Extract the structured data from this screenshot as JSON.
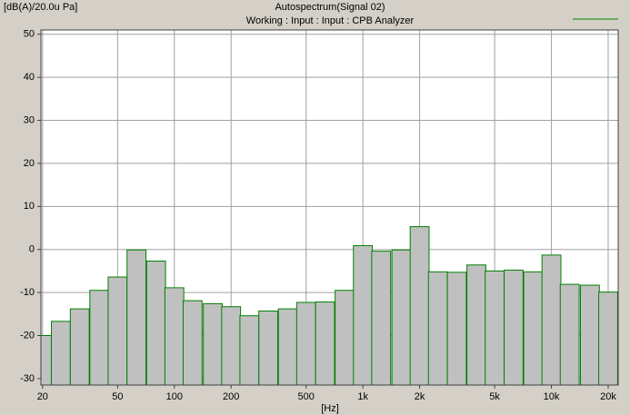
{
  "chart_data": {
    "type": "bar",
    "title": "Autospectrum(Signal 02)",
    "subtitle": "Working : Input : Input : CPB Analyzer",
    "y_label": "[dB(A)/20.0u Pa]",
    "x_label": "[Hz]",
    "x_scale": "log",
    "bands_per_octave": 3,
    "grid": true,
    "legend": "top-right",
    "x": [
      20,
      25,
      31.5,
      40,
      50,
      63,
      80,
      100,
      125,
      160,
      200,
      250,
      315,
      400,
      500,
      630,
      800,
      1000,
      1250,
      1600,
      2000,
      2500,
      3150,
      4000,
      5000,
      6300,
      8000,
      10000,
      12500,
      16000,
      20000
    ],
    "series": [
      {
        "color": "#008000",
        "fill": "#c0c0c0",
        "values": [
          -20,
          -16.7,
          -13.8,
          -9.5,
          -6.4,
          -0.1,
          -2.7,
          -8.9,
          -11.9,
          -12.6,
          -13.3,
          -15.4,
          -14.3,
          -13.8,
          -12.3,
          -12.2,
          -9.5,
          0.9,
          -0.4,
          -0.1,
          5.3,
          -5.2,
          -5.3,
          -3.6,
          -5,
          -4.8,
          -5.2,
          -1.3,
          -8.1,
          -8.3,
          -9.9
        ]
      }
    ],
    "xlim": [
      19.6,
      22600
    ],
    "ylim": [
      -31.5,
      51
    ],
    "xticks": [
      20,
      50,
      100,
      200,
      500,
      {
        "value": 1000,
        "label": "1k"
      },
      {
        "value": 2000,
        "label": "2k"
      },
      {
        "value": 5000,
        "label": "5k"
      },
      {
        "value": 10000,
        "label": "10k"
      },
      {
        "value": 20000,
        "label": "20k"
      }
    ],
    "yticks": [
      -30,
      -20,
      -10,
      0,
      10,
      20,
      30,
      40,
      50
    ]
  }
}
